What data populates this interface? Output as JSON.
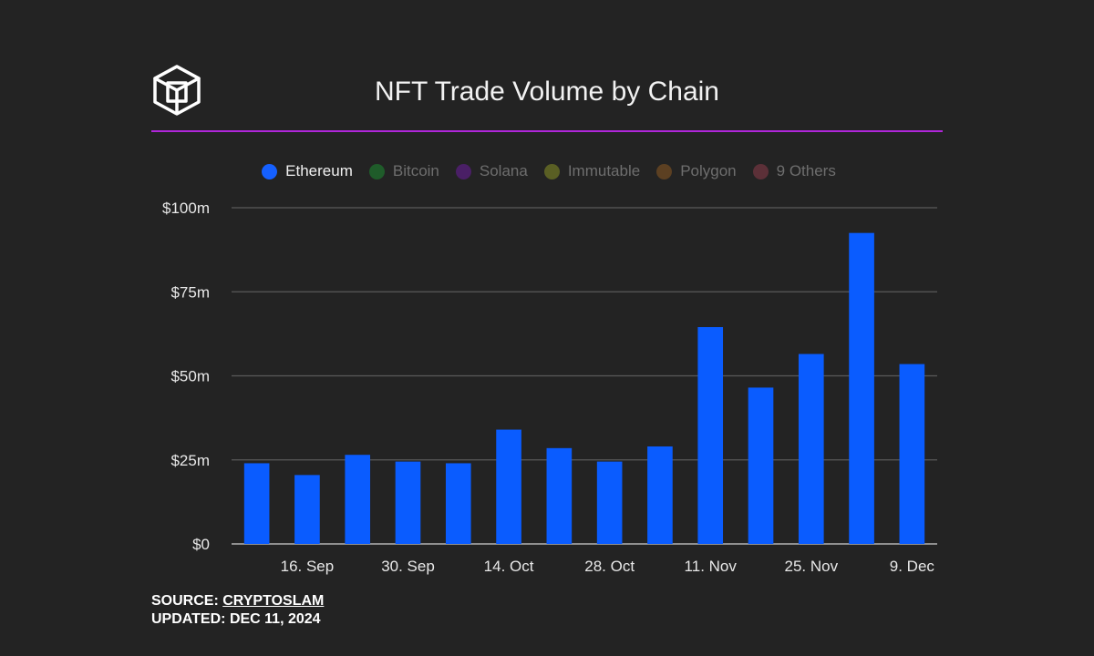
{
  "header": {
    "title": "NFT Trade Volume by Chain"
  },
  "colors": {
    "background": "#232323",
    "accent_rule": "#b026d9",
    "grid": "#5a5a5a",
    "bar": "#0a5cff",
    "tick_text": "#e8e8e8"
  },
  "legend": [
    {
      "name": "Ethereum",
      "color": "#1560ff",
      "active": true
    },
    {
      "name": "Bitcoin",
      "color": "#1f5c2a",
      "active": false
    },
    {
      "name": "Solana",
      "color": "#4a1f66",
      "active": false
    },
    {
      "name": "Immutable",
      "color": "#5a5f24",
      "active": false
    },
    {
      "name": "Polygon",
      "color": "#5c4022",
      "active": false
    },
    {
      "name": "9 Others",
      "color": "#5c3038",
      "active": false
    }
  ],
  "chart_data": {
    "type": "bar",
    "title": "NFT Trade Volume by Chain",
    "xlabel": "",
    "ylabel": "",
    "ylim": [
      0,
      100
    ],
    "y_ticks": [
      {
        "value": 0,
        "label": "$0"
      },
      {
        "value": 25,
        "label": "$25m"
      },
      {
        "value": 50,
        "label": "$50m"
      },
      {
        "value": 75,
        "label": "$75m"
      },
      {
        "value": 100,
        "label": "$100m"
      }
    ],
    "x_ticks": [
      {
        "index": 1,
        "label": "16. Sep"
      },
      {
        "index": 3,
        "label": "30. Sep"
      },
      {
        "index": 5,
        "label": "14. Oct"
      },
      {
        "index": 7,
        "label": "28. Oct"
      },
      {
        "index": 9,
        "label": "11. Nov"
      },
      {
        "index": 11,
        "label": "25. Nov"
      },
      {
        "index": 13,
        "label": "9. Dec"
      }
    ],
    "grid": true,
    "legend_position": "top",
    "series": [
      {
        "name": "Ethereum",
        "values": [
          24,
          20.5,
          26.5,
          24.5,
          24,
          34,
          28.5,
          24.5,
          29,
          64.5,
          46.5,
          56.5,
          92.5,
          53.5
        ]
      }
    ]
  },
  "footer": {
    "source_label": "SOURCE:",
    "source_name": "CRYPTOSLAM",
    "updated_label": "UPDATED:",
    "updated_date": "DEC 11, 2024"
  }
}
